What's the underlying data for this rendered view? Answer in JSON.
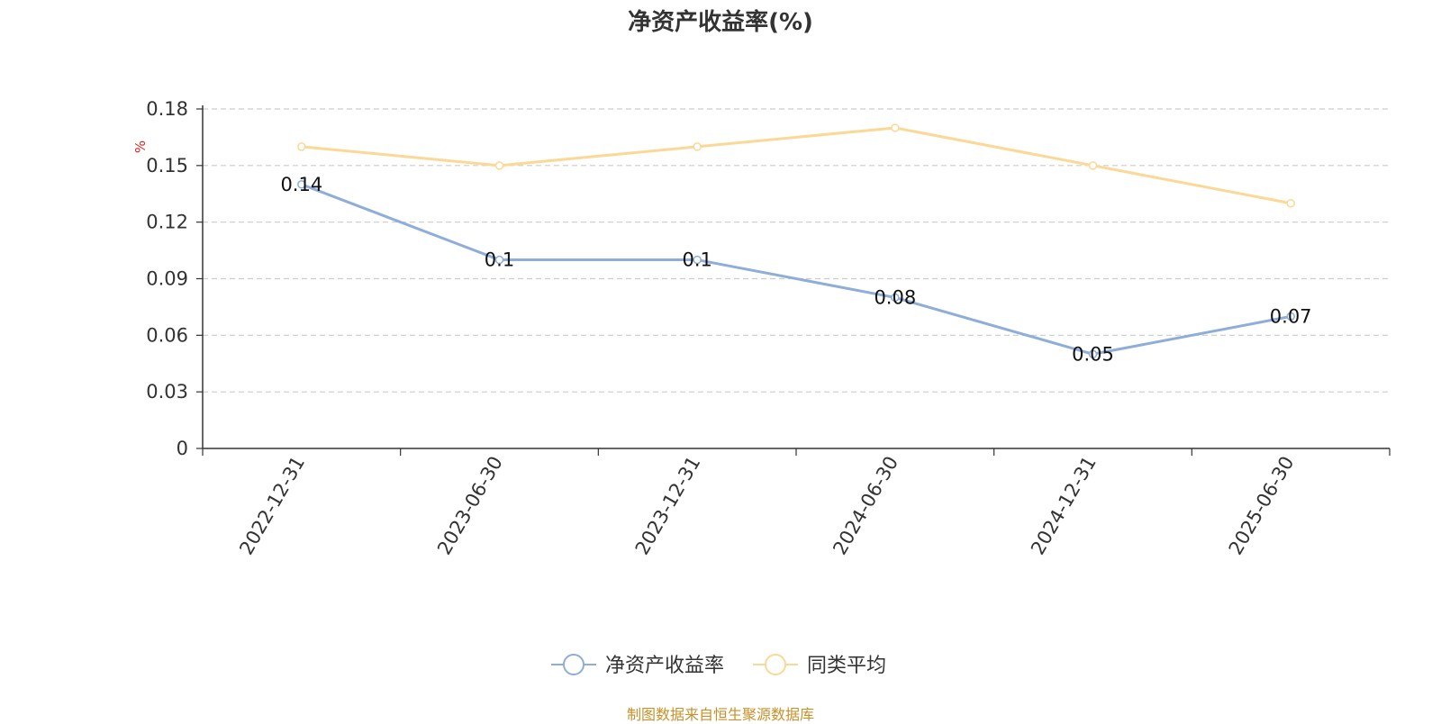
{
  "title": "净资产收益率(%)",
  "source_note": "制图数据来自恒生聚源数据库",
  "chart_data": {
    "type": "line",
    "title": "净资产收益率(%)",
    "ylabel": "%",
    "ylim": [
      0,
      0.18
    ],
    "yticks": [
      "0",
      "0.03",
      "0.06",
      "0.09",
      "0.12",
      "0.15",
      "0.18"
    ],
    "categories": [
      "2022-12-31",
      "2023-06-30",
      "2023-12-31",
      "2024-06-30",
      "2024-12-31",
      "2025-06-30"
    ],
    "grid": true,
    "legend": "bottom-center",
    "series": [
      {
        "name": "净资产收益率",
        "values": [
          0.14,
          0.1,
          0.1,
          0.08,
          0.05,
          0.07
        ],
        "labels": [
          "0.14",
          "0.1",
          "0.1",
          "0.08",
          "0.05",
          "0.07"
        ],
        "color": "#8eadd8"
      },
      {
        "name": "同类平均",
        "values": [
          0.16,
          0.15,
          0.16,
          0.17,
          0.15,
          0.13
        ],
        "color": "#fbd896"
      }
    ]
  }
}
